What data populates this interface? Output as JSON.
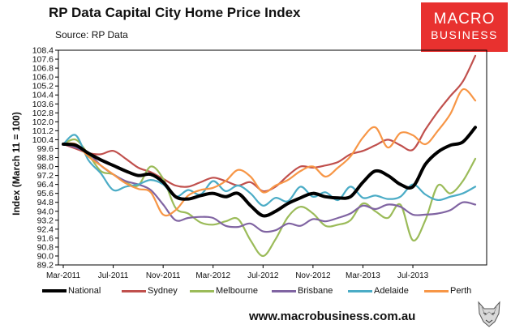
{
  "header": {
    "title": "RP Data Capital City Home Price Index",
    "subtitle": "Source: RP Data"
  },
  "logo": {
    "line1": "MACRO",
    "line2": "BUSINESS"
  },
  "footer": {
    "url": "www.macrobusiness.com.au"
  },
  "colors": {
    "National": "#000000",
    "Sydney": "#c0504d",
    "Melbourne": "#9bbb59",
    "Brisbane": "#8064a2",
    "Adelaide": "#4bacc6",
    "Perth": "#f79646"
  },
  "chart_data": {
    "type": "line",
    "title": "RP Data Capital City Home Price Index",
    "ylabel": "Index (March 11 = 100)",
    "xlabel": "",
    "ylim": [
      89.2,
      108.4
    ],
    "yticks": [
      "108.4",
      "107.6",
      "106.8",
      "106.0",
      "105.2",
      "104.4",
      "103.6",
      "102.8",
      "102.0",
      "101.2",
      "100.4",
      "99.6",
      "98.8",
      "98.0",
      "97.2",
      "96.4",
      "95.6",
      "94.8",
      "94.0",
      "93.2",
      "92.4",
      "91.6",
      "90.8",
      "90.0",
      "89.2"
    ],
    "xticks": [
      "Mar-2011",
      "Jul-2011",
      "Nov-2011",
      "Mar-2012",
      "Jul-2012",
      "Nov-2012",
      "Mar-2013",
      "Jul-2013"
    ],
    "x": [
      "2011-03",
      "2011-04",
      "2011-05",
      "2011-06",
      "2011-07",
      "2011-08",
      "2011-09",
      "2011-10",
      "2011-11",
      "2011-12",
      "2012-01",
      "2012-02",
      "2012-03",
      "2012-04",
      "2012-05",
      "2012-06",
      "2012-07",
      "2012-08",
      "2012-09",
      "2012-10",
      "2012-11",
      "2012-12",
      "2013-01",
      "2013-02",
      "2013-03",
      "2013-04",
      "2013-05",
      "2013-06",
      "2013-07",
      "2013-08",
      "2013-09",
      "2013-10",
      "2013-11",
      "2013-12"
    ],
    "grid": false,
    "legend": "bottom",
    "series": [
      {
        "name": "National",
        "values": [
          100.0,
          99.9,
          99.2,
          98.6,
          98.1,
          97.6,
          97.2,
          97.3,
          96.6,
          95.3,
          95.1,
          95.4,
          95.6,
          95.3,
          95.6,
          94.5,
          93.6,
          94.0,
          94.7,
          95.2,
          95.6,
          95.3,
          95.2,
          95.3,
          96.6,
          97.6,
          97.2,
          96.4,
          96.2,
          98.2,
          99.3,
          99.9,
          100.2,
          101.5
        ]
      },
      {
        "name": "Sydney",
        "values": [
          100.0,
          99.6,
          99.2,
          99.1,
          99.4,
          98.7,
          97.9,
          97.5,
          96.9,
          96.3,
          96.2,
          96.6,
          97.0,
          96.7,
          96.3,
          96.6,
          95.8,
          96.2,
          97.2,
          98.0,
          97.9,
          98.1,
          98.4,
          99.1,
          99.4,
          99.9,
          100.4,
          99.9,
          99.5,
          101.3,
          102.9,
          104.3,
          105.6,
          107.9
        ]
      },
      {
        "name": "Melbourne",
        "values": [
          100.0,
          100.4,
          99.1,
          97.6,
          97.3,
          96.6,
          96.3,
          98.0,
          96.9,
          94.3,
          93.8,
          93.0,
          92.8,
          93.1,
          93.3,
          91.4,
          90.0,
          91.5,
          93.5,
          94.4,
          93.8,
          92.7,
          92.8,
          93.2,
          94.7,
          94.0,
          93.4,
          94.6,
          91.4,
          93.2,
          96.3,
          95.6,
          96.7,
          98.7
        ]
      },
      {
        "name": "Brisbane",
        "values": [
          100.0,
          99.7,
          99.2,
          98.1,
          97.3,
          96.7,
          96.4,
          95.9,
          94.6,
          93.2,
          93.4,
          93.5,
          93.4,
          92.7,
          92.6,
          92.9,
          92.2,
          92.3,
          92.9,
          92.7,
          93.3,
          93.1,
          93.4,
          93.8,
          94.5,
          94.2,
          94.6,
          94.4,
          93.7,
          93.7,
          93.8,
          94.1,
          94.8,
          94.6
        ]
      },
      {
        "name": "Adelaide",
        "values": [
          100.0,
          100.8,
          98.6,
          97.4,
          95.9,
          96.2,
          96.4,
          96.8,
          96.4,
          95.3,
          95.9,
          95.5,
          96.7,
          95.8,
          96.3,
          95.6,
          94.5,
          95.2,
          94.9,
          96.2,
          95.3,
          95.7,
          95.0,
          96.2,
          95.2,
          95.4,
          95.1,
          95.3,
          96.4,
          95.5,
          95.0,
          95.3,
          95.6,
          96.2
        ]
      },
      {
        "name": "Perth",
        "values": [
          100.0,
          100.0,
          98.9,
          98.1,
          97.3,
          96.5,
          96.0,
          95.7,
          93.7,
          94.1,
          95.4,
          95.9,
          96.1,
          96.7,
          97.7,
          97.1,
          95.7,
          96.3,
          96.8,
          97.6,
          98.0,
          97.1,
          97.9,
          98.9,
          100.6,
          101.5,
          99.7,
          101.0,
          100.8,
          100.0,
          101.2,
          102.7,
          104.9,
          103.9
        ]
      }
    ]
  }
}
